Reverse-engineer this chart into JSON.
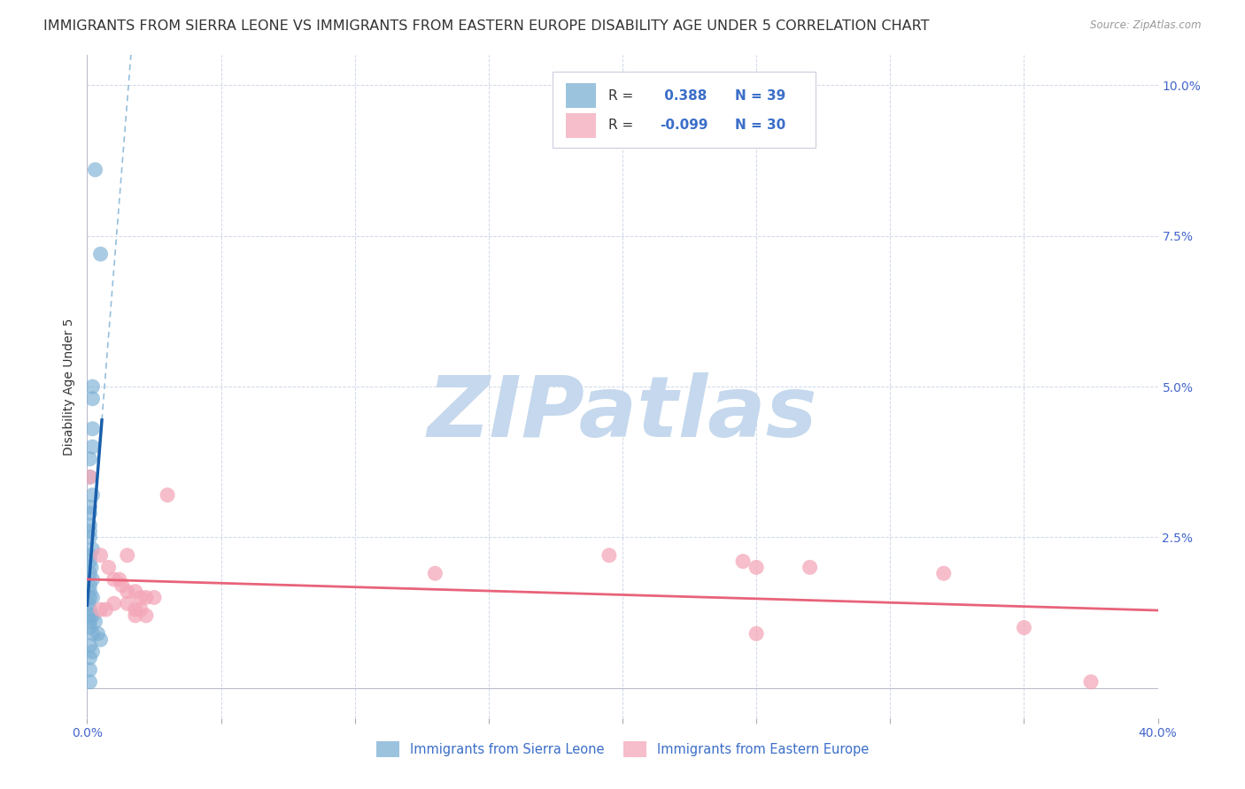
{
  "title": "IMMIGRANTS FROM SIERRA LEONE VS IMMIGRANTS FROM EASTERN EUROPE DISABILITY AGE UNDER 5 CORRELATION CHART",
  "source": "Source: ZipAtlas.com",
  "ylabel": "Disability Age Under 5",
  "xlabel": "",
  "xlim": [
    0.0,
    0.4
  ],
  "ylim": [
    -0.005,
    0.105
  ],
  "ylim_data": [
    0.0,
    0.1
  ],
  "xticks": [
    0.0,
    0.05,
    0.1,
    0.15,
    0.2,
    0.25,
    0.3,
    0.35,
    0.4
  ],
  "yticks": [
    0.0,
    0.025,
    0.05,
    0.075,
    0.1
  ],
  "R_blue": 0.388,
  "N_blue": 39,
  "R_pink": -0.099,
  "N_pink": 30,
  "blue_color": "#7BAFD4",
  "pink_color": "#F4A7B9",
  "blue_line_color": "#1A5FAB",
  "pink_line_color": "#E8637A",
  "blue_scatter": [
    [
      0.003,
      0.086
    ],
    [
      0.005,
      0.072
    ],
    [
      0.002,
      0.05
    ],
    [
      0.002,
      0.048
    ],
    [
      0.002,
      0.043
    ],
    [
      0.002,
      0.04
    ],
    [
      0.001,
      0.038
    ],
    [
      0.001,
      0.035
    ],
    [
      0.002,
      0.032
    ],
    [
      0.001,
      0.03
    ],
    [
      0.001,
      0.029
    ],
    [
      0.001,
      0.027
    ],
    [
      0.001,
      0.026
    ],
    [
      0.001,
      0.025
    ],
    [
      0.002,
      0.023
    ],
    [
      0.001,
      0.022
    ],
    [
      0.001,
      0.021
    ],
    [
      0.0015,
      0.02
    ],
    [
      0.001,
      0.019
    ],
    [
      0.002,
      0.018
    ],
    [
      0.001,
      0.017
    ],
    [
      0.001,
      0.016
    ],
    [
      0.001,
      0.015
    ],
    [
      0.002,
      0.015
    ],
    [
      0.0005,
      0.014
    ],
    [
      0.001,
      0.013
    ],
    [
      0.002,
      0.012
    ],
    [
      0.001,
      0.012
    ],
    [
      0.001,
      0.011
    ],
    [
      0.003,
      0.011
    ],
    [
      0.001,
      0.01
    ],
    [
      0.002,
      0.009
    ],
    [
      0.004,
      0.009
    ],
    [
      0.005,
      0.008
    ],
    [
      0.001,
      0.007
    ],
    [
      0.002,
      0.006
    ],
    [
      0.001,
      0.005
    ],
    [
      0.001,
      0.003
    ],
    [
      0.001,
      0.001
    ]
  ],
  "pink_scatter": [
    [
      0.001,
      0.035
    ],
    [
      0.005,
      0.022
    ],
    [
      0.008,
      0.02
    ],
    [
      0.01,
      0.018
    ],
    [
      0.012,
      0.018
    ],
    [
      0.013,
      0.017
    ],
    [
      0.015,
      0.016
    ],
    [
      0.018,
      0.016
    ],
    [
      0.02,
      0.015
    ],
    [
      0.022,
      0.015
    ],
    [
      0.025,
      0.015
    ],
    [
      0.01,
      0.014
    ],
    [
      0.015,
      0.014
    ],
    [
      0.005,
      0.013
    ],
    [
      0.007,
      0.013
    ],
    [
      0.018,
      0.013
    ],
    [
      0.02,
      0.013
    ],
    [
      0.022,
      0.012
    ],
    [
      0.015,
      0.022
    ],
    [
      0.018,
      0.012
    ],
    [
      0.03,
      0.032
    ],
    [
      0.25,
      0.02
    ],
    [
      0.13,
      0.019
    ],
    [
      0.195,
      0.022
    ],
    [
      0.245,
      0.021
    ],
    [
      0.27,
      0.02
    ],
    [
      0.32,
      0.019
    ],
    [
      0.35,
      0.01
    ],
    [
      0.25,
      0.009
    ],
    [
      0.375,
      0.001
    ]
  ],
  "watermark": "ZIPatlas",
  "watermark_color": "#C5D8ED",
  "background_color": "#FFFFFF",
  "grid_color": "#D0D8E8",
  "blue_legend_label": "Immigrants from Sierra Leone",
  "pink_legend_label": "Immigrants from Eastern Europe",
  "title_fontsize": 11.5,
  "axis_label_fontsize": 10,
  "tick_fontsize": 10,
  "text_color": "#333333",
  "blue_text_color": "#3B6EC8",
  "tick_color": "#4466CC"
}
